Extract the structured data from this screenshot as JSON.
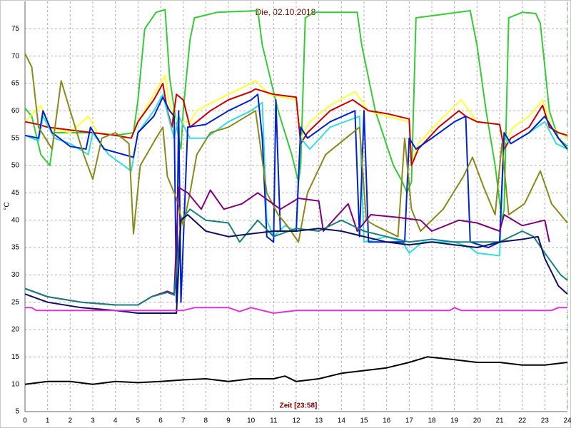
{
  "chart_data": {
    "type": "line",
    "title": "Die, 02.10.2018",
    "xlabel": "Zeit [23:58]",
    "ylabel": "°C",
    "xlim": [
      0,
      24
    ],
    "ylim": [
      5,
      80
    ],
    "xticks": [
      0,
      1,
      2,
      3,
      4,
      5,
      6,
      7,
      8,
      9,
      10,
      11,
      12,
      13,
      14,
      15,
      16,
      17,
      18,
      19,
      20,
      21,
      22,
      23,
      24
    ],
    "yticks": [
      5,
      10,
      15,
      20,
      25,
      30,
      35,
      40,
      45,
      50,
      55,
      60,
      65,
      70,
      75
    ],
    "grid": true,
    "series": [
      {
        "color": "#33cc33",
        "x": [
          0,
          0.3,
          0.7,
          1.1,
          1.3,
          2,
          3,
          4,
          4.8,
          5,
          5.3,
          5.8,
          6.2,
          6.4,
          6.8,
          6.9,
          7,
          7.3,
          7.5,
          8.5,
          10.3,
          10.5,
          11.2,
          11.8,
          12.1,
          12.2,
          12.4,
          12.8,
          14.7,
          14.9,
          15.5,
          16.3,
          16.7,
          16.9,
          17.1,
          17.3,
          19.7,
          20,
          20.4,
          20.8,
          21.1,
          21.2,
          21.4,
          22,
          22.6,
          22.8,
          23.2,
          23.6,
          24
        ],
        "values": [
          60.5,
          59,
          52,
          50,
          56,
          56,
          56,
          55.5,
          56,
          62,
          75,
          78,
          78.5,
          66,
          55,
          53,
          60,
          73,
          77,
          78,
          78.3,
          72,
          60,
          52,
          47,
          50,
          77,
          78,
          78,
          72,
          60,
          50,
          47,
          45,
          47,
          77,
          78.3,
          72,
          60,
          50,
          40,
          42,
          77,
          78,
          77.8,
          76,
          60,
          55,
          53.5
        ]
      },
      {
        "color": "#ffff33",
        "x": [
          0,
          0.7,
          1,
          2,
          2.8,
          3.2,
          4,
          4.7,
          5,
          5.7,
          6.2,
          6.4,
          6.7,
          7.3,
          7.6,
          8.5,
          9.5,
          10.2,
          10.8,
          12,
          12.2,
          12.6,
          13.5,
          14.6,
          15.2,
          16,
          17,
          17.1,
          17.4,
          18.3,
          19.3,
          20,
          21,
          21.2,
          21.6,
          22.3,
          22.9,
          23.3,
          24
        ],
        "values": [
          58,
          61,
          57,
          56,
          59,
          56,
          55.5,
          55,
          58,
          63,
          66.5,
          61,
          58,
          58,
          60,
          62,
          64,
          65.5,
          63,
          62,
          55,
          58,
          61,
          63.5,
          60,
          59,
          58,
          50,
          54,
          58,
          62,
          58,
          57.5,
          54,
          57,
          59,
          62,
          57,
          55
        ]
      },
      {
        "color": "#cc0000",
        "x": [
          0,
          0.6,
          1,
          2,
          3,
          4,
          4.7,
          5,
          5.7,
          6.1,
          6.3,
          6.5,
          6.7,
          7,
          7.3,
          7.6,
          8.2,
          9,
          10,
          10.2,
          11,
          12,
          12.2,
          12.5,
          13.5,
          14.5,
          15.2,
          16,
          17,
          17.1,
          17.4,
          18.3,
          19.2,
          19.5,
          20,
          21,
          21.2,
          21.5,
          22.3,
          22.9,
          23.2,
          23.6,
          24
        ],
        "values": [
          58,
          57.5,
          57,
          56.5,
          56,
          55.5,
          55,
          58,
          62,
          65,
          60,
          57,
          63,
          62,
          57,
          58,
          60,
          62,
          63.5,
          64,
          63,
          62.5,
          54,
          56,
          60,
          62,
          60,
          59.5,
          58.5,
          50,
          53,
          57,
          60,
          59,
          58,
          57.5,
          53,
          55,
          57,
          61,
          57,
          56,
          55.5
        ]
      },
      {
        "color": "#33dddd",
        "x": [
          0,
          0.6,
          0.8,
          1.3,
          2,
          2.8,
          3,
          3.7,
          4.7,
          5,
          5.7,
          6.1,
          6.4,
          6.6,
          6.8,
          7.3,
          8,
          9,
          10,
          10.5,
          10.7,
          11,
          11.5,
          12,
          12.2,
          12.6,
          13.5,
          14.8,
          15,
          16,
          16.7,
          17,
          17.6,
          19,
          19.7,
          20,
          21,
          21.2,
          21.5,
          22.3,
          23,
          23.5,
          24
        ],
        "values": [
          55.5,
          54.5,
          59,
          55,
          54,
          52,
          56,
          52,
          49,
          56,
          60,
          63,
          58,
          55,
          59,
          55,
          55,
          58,
          60,
          61.5,
          40,
          37,
          39,
          38,
          55,
          53,
          57,
          59,
          36,
          37,
          36,
          34,
          36,
          36,
          35,
          34,
          33.5,
          55,
          54,
          56,
          58,
          54,
          53
        ]
      },
      {
        "color": "#0022cc",
        "x": [
          0,
          0.6,
          0.8,
          1.2,
          2,
          2.7,
          2.9,
          3.5,
          4.8,
          5,
          5.7,
          6.1,
          6.4,
          6.6,
          6.7,
          6.8,
          6.9,
          7.2,
          8,
          9,
          10,
          10.3,
          10.5,
          10.7,
          11,
          11.1,
          11.3,
          12,
          12.2,
          12.5,
          13.5,
          14.6,
          14.8,
          15,
          15.2,
          16.8,
          17,
          17.3,
          18,
          19,
          19.5,
          19.7,
          20.5,
          21,
          21.2,
          21.5,
          22.3,
          23,
          23.6,
          24
        ],
        "values": [
          55.5,
          55,
          60,
          56,
          53.5,
          53,
          57,
          53,
          51.5,
          56,
          59,
          62.5,
          60,
          59,
          25,
          60,
          25,
          57,
          57.5,
          60,
          62,
          63,
          55,
          37,
          36,
          62,
          38,
          38,
          57,
          55,
          58,
          60,
          37,
          60,
          36,
          36,
          55,
          53,
          55,
          58,
          59,
          36,
          35,
          36,
          56,
          54,
          56,
          59,
          55,
          53
        ]
      },
      {
        "color": "#8a8a1a",
        "x": [
          0,
          0.3,
          0.6,
          1.2,
          1.6,
          2,
          2.6,
          3,
          3.4,
          4,
          4.6,
          4.8,
          5.1,
          5.8,
          6.1,
          6.3,
          6.7,
          7,
          7.3,
          7.6,
          8.2,
          9,
          10.2,
          10.7,
          11.2,
          11.6,
          12.1,
          12.5,
          13.3,
          14.8,
          15.1,
          15.5,
          16.5,
          16.8,
          17.1,
          17.5,
          18.5,
          19.4,
          19.8,
          20.3,
          20.8,
          21.1,
          21.4,
          22.1,
          22.8,
          23.3,
          24
        ],
        "values": [
          70.5,
          68,
          57,
          53,
          65.5,
          60,
          52,
          47.5,
          55,
          56,
          54,
          37.5,
          50,
          55,
          57,
          48,
          44,
          39,
          45,
          52,
          56,
          57,
          60,
          45,
          41,
          39,
          36,
          45,
          52,
          57,
          40,
          39,
          37,
          55,
          42,
          38,
          42,
          48,
          51.5,
          46,
          41,
          54,
          41,
          43,
          49,
          43,
          39.5
        ]
      },
      {
        "color": "#800080",
        "x": [
          0,
          1,
          2.5,
          4,
          5,
          5.6,
          6.3,
          6.6,
          6.8,
          7.2,
          7.8,
          8.2,
          8.8,
          9.6,
          10.3,
          11.3,
          12.1,
          13,
          13.2,
          14.3,
          14.7,
          15.3,
          16.5,
          17.5,
          18,
          19.2,
          20,
          21,
          21.2,
          22,
          23,
          23.2
        ],
        "values": [
          27.5,
          26,
          25,
          24.5,
          24.5,
          26,
          27,
          26.5,
          46,
          45,
          42,
          45.5,
          42,
          43,
          45,
          42,
          44,
          43.5,
          38,
          43,
          38,
          41,
          40.5,
          40,
          38,
          40,
          39.5,
          38,
          41,
          39,
          40,
          36
        ]
      },
      {
        "color": "#1a8080",
        "x": [
          0,
          1,
          2.5,
          4,
          5,
          5.6,
          6.3,
          6.6,
          6.9,
          7.3,
          8,
          9,
          9.5,
          10.3,
          11,
          12,
          13,
          14,
          15,
          16,
          17,
          18,
          19,
          20,
          21,
          22,
          22.5,
          23,
          23.7,
          24
        ],
        "values": [
          27.5,
          26,
          25,
          24.5,
          24.5,
          26,
          26.8,
          26.3,
          40,
          42,
          40,
          39.5,
          36,
          40,
          37,
          38.5,
          38,
          40,
          38,
          37,
          36,
          36.5,
          36,
          36,
          36,
          38,
          37,
          34,
          30,
          29
        ]
      },
      {
        "color": "#101060",
        "x": [
          0,
          1,
          2.5,
          4,
          5,
          6.7,
          6.9,
          7.2,
          8,
          9,
          10,
          11,
          12,
          13,
          14,
          15,
          16,
          17,
          18,
          19,
          20,
          21,
          22,
          22.7,
          23,
          23.6,
          24
        ],
        "values": [
          26.5,
          25,
          24,
          23.5,
          23,
          23,
          40,
          41,
          38,
          37,
          37.5,
          38,
          38,
          38.5,
          38,
          37,
          36,
          35.5,
          36,
          35.5,
          35,
          36,
          36.5,
          37,
          33,
          28,
          26.5
        ]
      },
      {
        "color": "#dd33dd",
        "x": [
          0,
          0.3,
          0.5,
          6.7,
          7,
          7.5,
          9,
          9.5,
          10,
          11,
          12,
          18.8,
          19,
          19.3,
          23.3,
          23.6,
          24
        ],
        "values": [
          24,
          24,
          23.5,
          23.5,
          23.5,
          24,
          24,
          23.3,
          24,
          23,
          23.5,
          23.5,
          24,
          23.5,
          23.5,
          24,
          24
        ]
      },
      {
        "color": "#000000",
        "x": [
          0,
          1,
          2,
          3,
          4,
          5,
          6,
          7,
          8,
          9,
          10,
          11,
          11.5,
          12,
          13,
          14,
          15,
          16,
          17,
          17.8,
          19,
          20,
          21,
          22,
          23,
          24
        ],
        "values": [
          10,
          10.5,
          10.5,
          10,
          10.5,
          10.3,
          10.5,
          10.8,
          11,
          10.5,
          11,
          11,
          11.5,
          10.5,
          11,
          12,
          12.5,
          13,
          14,
          15,
          14.5,
          14,
          14,
          13.5,
          13.5,
          14
        ]
      }
    ]
  }
}
